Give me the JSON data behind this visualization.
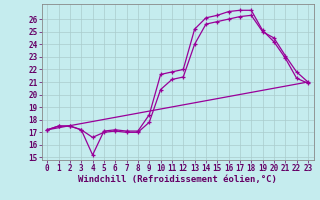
{
  "xlabel": "Windchill (Refroidissement éolien,°C)",
  "ylabel": "",
  "xlim": [
    -0.5,
    23.5
  ],
  "ylim": [
    14.8,
    27.2
  ],
  "xticks": [
    0,
    1,
    2,
    3,
    4,
    5,
    6,
    7,
    8,
    9,
    10,
    11,
    12,
    13,
    14,
    15,
    16,
    17,
    18,
    19,
    20,
    21,
    22,
    23
  ],
  "yticks": [
    15,
    16,
    17,
    18,
    19,
    20,
    21,
    22,
    23,
    24,
    25,
    26
  ],
  "bg_color": "#c5ecee",
  "grid_color": "#aacccc",
  "line_color": "#990099",
  "line1_x": [
    0,
    1,
    2,
    3,
    4,
    5,
    6,
    7,
    8,
    9,
    10,
    11,
    12,
    13,
    14,
    15,
    16,
    17,
    18,
    19,
    20,
    21,
    22,
    23
  ],
  "line1_y": [
    17.2,
    17.5,
    17.5,
    17.2,
    15.2,
    17.1,
    17.2,
    17.1,
    17.1,
    18.4,
    21.6,
    21.8,
    22.0,
    25.2,
    26.1,
    26.3,
    26.6,
    26.7,
    26.7,
    25.1,
    24.2,
    22.9,
    21.3,
    20.9
  ],
  "line2_x": [
    0,
    1,
    2,
    3,
    4,
    5,
    6,
    7,
    8,
    9,
    10,
    11,
    12,
    13,
    14,
    15,
    16,
    17,
    18,
    19,
    20,
    21,
    22,
    23
  ],
  "line2_y": [
    17.2,
    17.5,
    17.5,
    17.2,
    16.6,
    17.0,
    17.1,
    17.0,
    17.0,
    17.8,
    20.4,
    21.2,
    21.4,
    24.0,
    25.6,
    25.8,
    26.0,
    26.2,
    26.3,
    25.0,
    24.5,
    23.1,
    21.8,
    21.0
  ],
  "line3_x": [
    0,
    23
  ],
  "line3_y": [
    17.2,
    21.0
  ],
  "font_size_label": 6.5,
  "font_size_tick": 5.5
}
